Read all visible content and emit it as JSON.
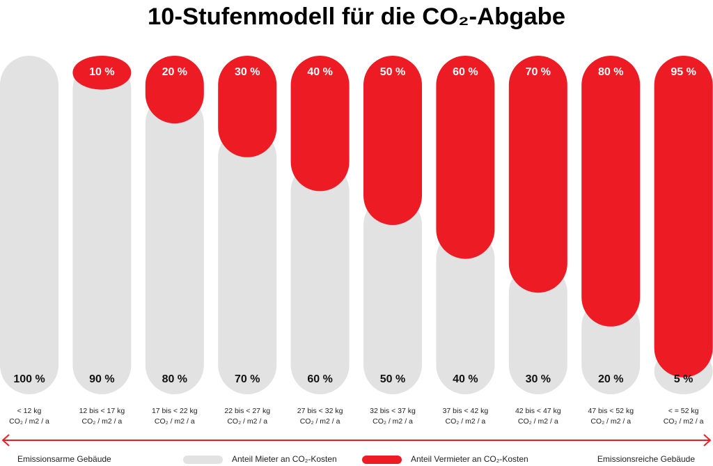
{
  "chart_data": {
    "type": "stacked-pill",
    "title": "10-Stufenmodell für die CO₂-Abgabe",
    "categories": [
      "< 12 kg",
      "12 bis < 17 kg",
      "17 bis < 22 kg",
      "22 bis < 27 kg",
      "27 bis < 32 kg",
      "32 bis < 37 kg",
      "37 bis < 42 kg",
      "42 bis < 47 kg",
      "47 bis < 52 kg",
      "< = 52 kg"
    ],
    "category_unit": "CO₂ / m2 / a",
    "series": [
      {
        "name": "Anteil Mieter an CO₂-Kosten",
        "color": "#e2e2e2",
        "label_color": "#111111",
        "values": [
          100,
          90,
          80,
          70,
          60,
          50,
          40,
          30,
          20,
          5
        ],
        "value_labels": [
          "100 %",
          "90 %",
          "80 %",
          "70 %",
          "60 %",
          "50 %",
          "40 %",
          "30 %",
          "20 %",
          "5 %"
        ]
      },
      {
        "name": "Anteil Vermieter an CO₂-Kosten",
        "color": "#ed1c24",
        "label_color": "#ffffff",
        "values": [
          0,
          10,
          20,
          30,
          40,
          50,
          60,
          70,
          80,
          95
        ],
        "value_labels": [
          null,
          "10 %",
          "20 %",
          "30 %",
          "40 %",
          "50 %",
          "60 %",
          "70 %",
          "80 %",
          "95 %"
        ]
      }
    ],
    "annotations": {
      "left": "Emissionsarme Gebäude",
      "right": "Emissionsreiche Gebäude"
    }
  }
}
